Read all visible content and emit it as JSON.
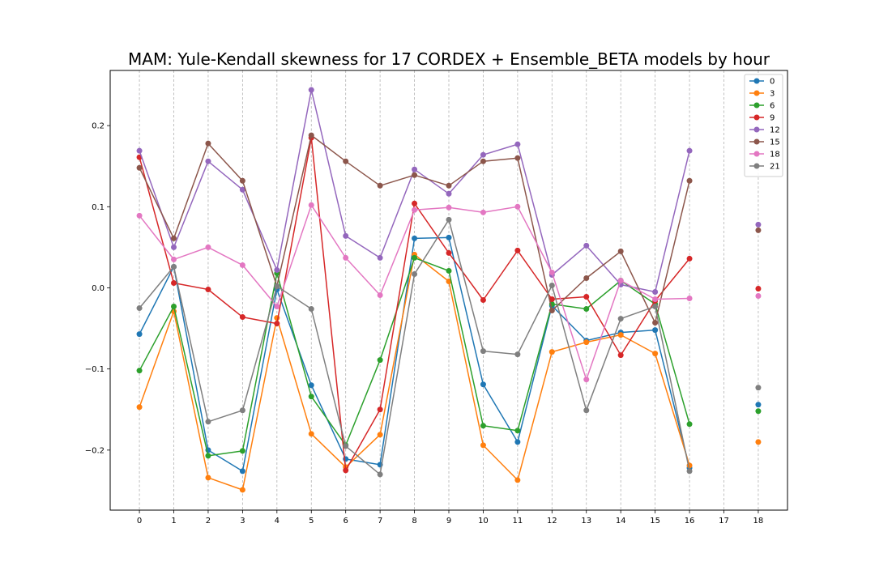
{
  "chart_data": {
    "type": "line",
    "title": "MAM: Yule-Kendall skewness for 17 CORDEX + Ensemble_BETA models by hour",
    "xlabel": "",
    "ylabel": "",
    "x": [
      0,
      1,
      2,
      3,
      4,
      5,
      6,
      7,
      8,
      9,
      10,
      11,
      12,
      13,
      14,
      15,
      16,
      17,
      18
    ],
    "xticks": [
      "0",
      "1",
      "2",
      "3",
      "4",
      "5",
      "6",
      "7",
      "8",
      "9",
      "10",
      "11",
      "12",
      "13",
      "14",
      "15",
      "16",
      "17",
      "18"
    ],
    "xlim": [
      -0.85,
      18.85
    ],
    "ylim": [
      -0.274,
      0.268
    ],
    "yticks": [
      -0.2,
      -0.1,
      0.0,
      0.1,
      0.2
    ],
    "ytick_labels": [
      "−0.2",
      "−0.1",
      "0.0",
      "0.1",
      "0.2"
    ],
    "grid": "x-dashed",
    "legend_position": "top-right",
    "series": [
      {
        "name": "0",
        "color": "#1f77b4",
        "values": [
          -0.057,
          0.026,
          -0.2,
          -0.226,
          -0.002,
          -0.12,
          -0.211,
          -0.218,
          0.061,
          0.062,
          -0.119,
          -0.19,
          -0.022,
          -0.065,
          -0.055,
          -0.052,
          -0.222,
          null,
          -0.144
        ]
      },
      {
        "name": "3",
        "color": "#ff7f0e",
        "values": [
          -0.147,
          -0.029,
          -0.234,
          -0.249,
          -0.037,
          -0.18,
          -0.221,
          -0.181,
          0.041,
          0.008,
          -0.194,
          -0.237,
          -0.079,
          -0.067,
          -0.058,
          -0.081,
          -0.219,
          null,
          -0.19
        ]
      },
      {
        "name": "6",
        "color": "#2ca02c",
        "values": [
          -0.102,
          -0.023,
          -0.207,
          -0.201,
          0.018,
          -0.134,
          -0.194,
          -0.089,
          0.037,
          0.021,
          -0.17,
          -0.176,
          -0.02,
          -0.026,
          0.009,
          -0.02,
          -0.168,
          null,
          -0.152
        ]
      },
      {
        "name": "9",
        "color": "#d62728",
        "values": [
          0.161,
          0.006,
          -0.002,
          -0.036,
          -0.044,
          0.185,
          -0.225,
          -0.15,
          0.104,
          0.043,
          -0.015,
          0.046,
          -0.014,
          -0.011,
          -0.083,
          -0.016,
          0.036,
          null,
          -0.001
        ]
      },
      {
        "name": "12",
        "color": "#9467bd",
        "values": [
          0.169,
          0.05,
          0.156,
          0.121,
          0.022,
          0.244,
          0.064,
          0.037,
          0.146,
          0.116,
          0.164,
          0.177,
          0.016,
          0.052,
          0.004,
          -0.005,
          0.169,
          null,
          0.078
        ]
      },
      {
        "name": "15",
        "color": "#8c564b",
        "values": [
          0.148,
          0.061,
          0.178,
          0.132,
          0.002,
          0.188,
          0.156,
          0.126,
          0.139,
          0.126,
          0.156,
          0.16,
          -0.028,
          0.012,
          0.045,
          -0.043,
          0.132,
          null,
          0.071
        ]
      },
      {
        "name": "18",
        "color": "#e377c2",
        "values": [
          0.089,
          0.035,
          0.05,
          0.028,
          -0.023,
          0.102,
          0.037,
          -0.009,
          0.096,
          0.099,
          0.093,
          0.1,
          0.019,
          -0.113,
          0.009,
          -0.014,
          -0.013,
          null,
          -0.01
        ]
      },
      {
        "name": "21",
        "color": "#7f7f7f",
        "values": [
          -0.025,
          0.026,
          -0.165,
          -0.151,
          0.002,
          -0.026,
          -0.195,
          -0.23,
          0.017,
          0.084,
          -0.078,
          -0.082,
          0.003,
          -0.151,
          -0.038,
          -0.023,
          -0.226,
          null,
          -0.123
        ]
      }
    ]
  }
}
